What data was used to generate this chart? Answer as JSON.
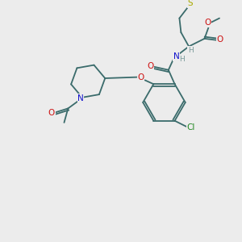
{
  "bg_color": "#ececec",
  "atom_colors": {
    "C": "#3a6b6b",
    "H": "#7a9a9a",
    "N": "#1010cc",
    "O": "#cc1010",
    "S": "#aaaa00",
    "Cl": "#228822"
  },
  "bond_color": "#3a6b6b",
  "lw": 1.3
}
